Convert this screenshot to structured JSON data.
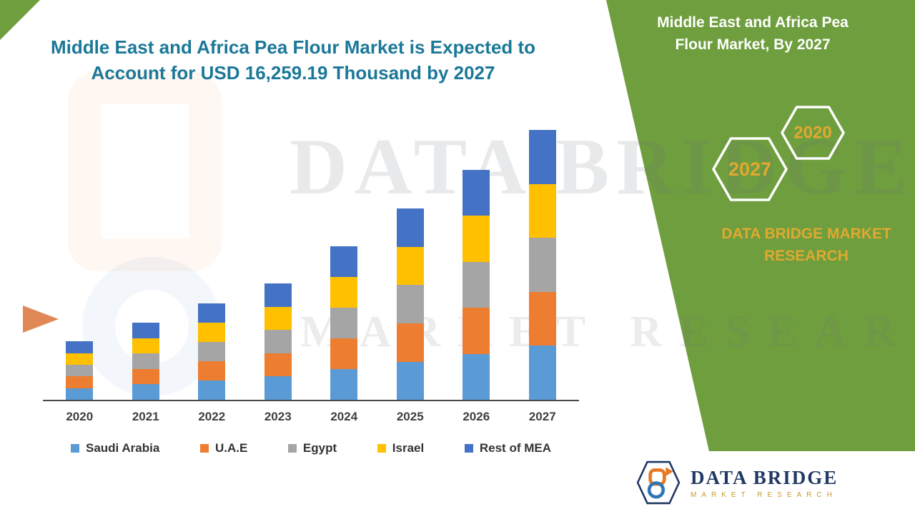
{
  "theme": {
    "green": "#6F9E3F",
    "gold": "#E0A92F",
    "title_color": "#1B7898",
    "axis_text": "#3F3F3F",
    "navy": "#1F3864"
  },
  "title": {
    "line1": "Middle East and Africa Pea Flour Market is Expected to",
    "line2": "Account for USD 16,259.19 Thousand by 2027"
  },
  "watermark": {
    "line1": "DATA BRIDGE",
    "line2": "MARKET RESEARCH"
  },
  "panel": {
    "heading_line1": "Middle East and Africa Pea",
    "heading_line2": "Flour Market, By 2027",
    "hexagons": [
      {
        "label": "2027"
      },
      {
        "label": "2020"
      }
    ],
    "brand_line1": "DATA BRIDGE MARKET",
    "brand_line2": "RESEARCH"
  },
  "footer_logo": {
    "brand": "DATA BRIDGE",
    "tagline": "MARKET RESEARCH"
  },
  "chart_data": {
    "type": "bar",
    "subtype": "stacked-vertical",
    "title": "Middle East and Africa Pea Flour Market is Expected to Account for USD 16,259.19 Thousand by 2027",
    "unit": "USD Thousand",
    "categories": [
      "2020",
      "2021",
      "2022",
      "2023",
      "2024",
      "2025",
      "2026",
      "2027"
    ],
    "series": [
      {
        "name": "Saudi Arabia",
        "color": "#5B9BD5",
        "values": [
          700,
          930,
          1160,
          1400,
          1850,
          2300,
          2770,
          3250
        ]
      },
      {
        "name": "U.A.E",
        "color": "#ED7D31",
        "values": [
          705,
          930,
          1160,
          1400,
          1850,
          2305,
          2770,
          3252
        ]
      },
      {
        "name": "Egypt",
        "color": "#A5A5A5",
        "values": [
          705,
          928,
          1160,
          1400,
          1850,
          2305,
          2770,
          3252
        ]
      },
      {
        "name": "Israel",
        "color": "#FFC000",
        "values": [
          708,
          928,
          1162,
          1405,
          1848,
          2307,
          2768,
          3252.19
        ]
      },
      {
        "name": "Rest of MEA",
        "color": "#4472C4",
        "values": [
          708,
          928,
          1163,
          1404,
          1847,
          2307,
          2768,
          3253
        ]
      }
    ],
    "totals": [
      3526,
      4644,
      5805,
      7009,
      9245,
      11524,
      13846,
      16259.19
    ],
    "ymax": 16259.19,
    "grid": false,
    "legend_position": "bottom",
    "y_axis_shown": false
  }
}
